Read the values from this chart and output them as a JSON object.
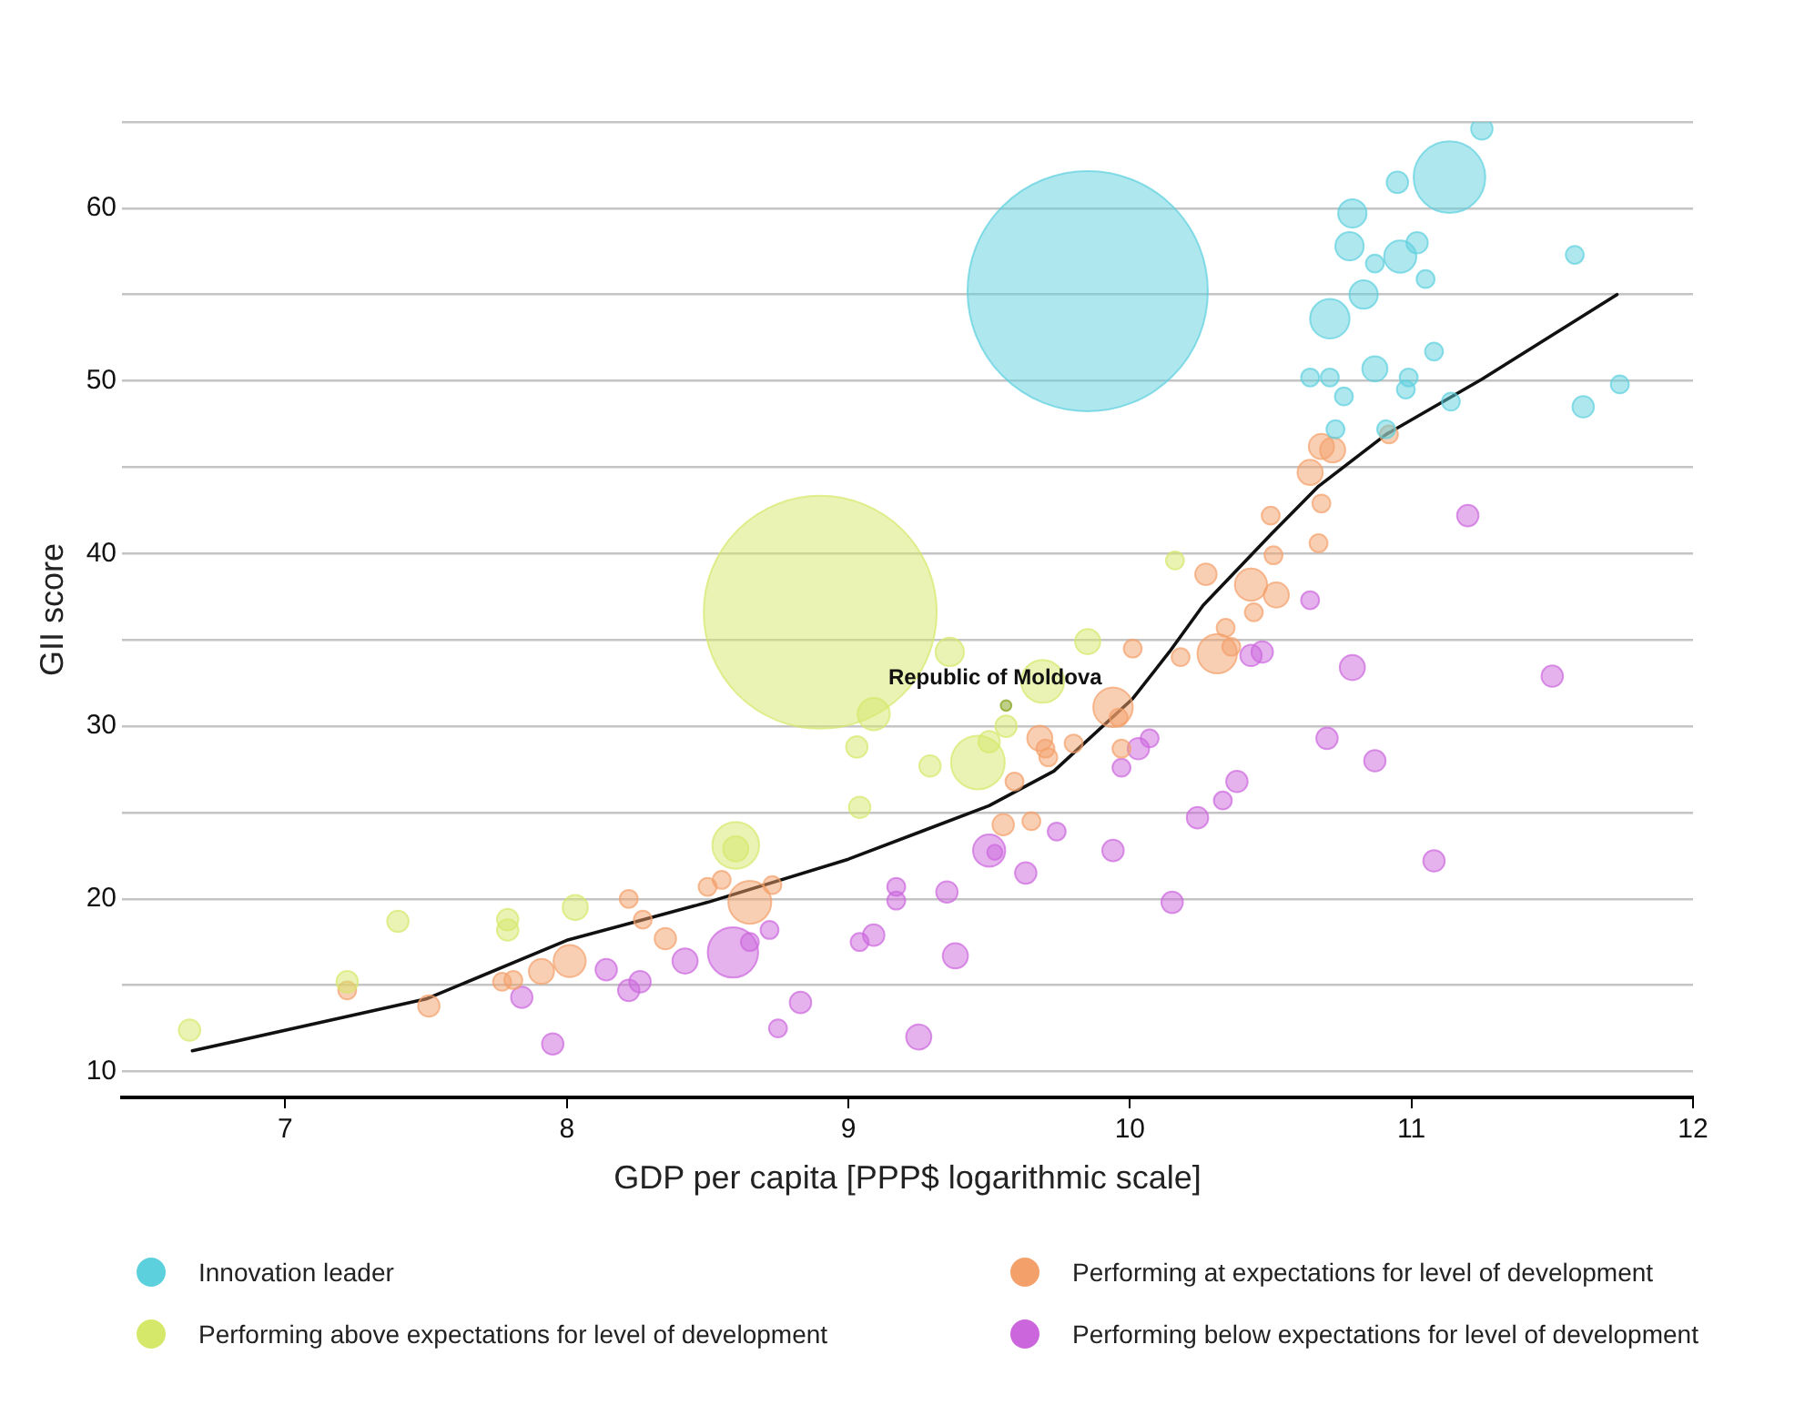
{
  "chart_data": {
    "type": "bubble",
    "xlabel": "GDP per capita [PPP$ logarithmic scale]",
    "ylabel": "GII score",
    "xlim": [
      6.42,
      12
    ],
    "ylim": [
      8.5,
      65
    ],
    "xticks": [
      7,
      8,
      9,
      10,
      11,
      12
    ],
    "yticks": [
      10,
      {
        "value": 15,
        "label": null
      },
      20,
      {
        "value": 25,
        "label": null
      },
      30,
      {
        "value": 35,
        "label": null
      },
      40,
      {
        "value": 45,
        "label": null
      },
      50,
      {
        "value": 55,
        "label": null
      },
      60,
      {
        "value": 65,
        "label": null
      }
    ],
    "grid": "y",
    "legend": "bottom",
    "annotations": [
      {
        "text": "Republic of Moldova",
        "x": 9.56,
        "y": 31.2
      }
    ],
    "series": [
      {
        "name": "Innovation leader",
        "color": "#5dd0de",
        "x": [
          9.85,
          11.25,
          11.135,
          10.95,
          10.79,
          10.78,
          10.87,
          10.96,
          11.02,
          11.05,
          10.83,
          10.71,
          11.58,
          11.08,
          10.87,
          10.64,
          10.71,
          10.99,
          10.98,
          10.76,
          11.14,
          11.61,
          11.74,
          10.73,
          10.91
        ],
        "values": [
          55.2,
          64.6,
          61.8,
          61.5,
          59.7,
          57.8,
          56.8,
          57.2,
          58.0,
          55.9,
          55.0,
          53.6,
          57.3,
          51.7,
          50.7,
          50.2,
          50.2,
          50.2,
          49.5,
          49.1,
          48.8,
          48.5,
          49.8,
          47.2,
          47.2
        ],
        "sizes": [
          1,
          0.008,
          0.089,
          0.008,
          0.014,
          0.014,
          0.0056,
          0.018,
          0.008,
          0.0056,
          0.014,
          0.027,
          0.0056,
          0.0056,
          0.011,
          0.0056,
          0.0056,
          0.0056,
          0.0056,
          0.0056,
          0.0056,
          0.008,
          0.0056,
          0.0056,
          0.0056
        ]
      },
      {
        "name": "Performing above expectations for level of development",
        "color": "#d6e86a",
        "x": [
          8.9,
          10.16,
          9.85,
          9.36,
          9.69,
          9.56,
          9.5,
          9.46,
          9.29,
          9.09,
          9.03,
          9.04,
          8.6,
          8.6,
          6.66,
          7.22,
          7.4,
          7.79,
          7.79,
          8.03
        ],
        "values": [
          36.6,
          39.6,
          34.9,
          34.3,
          32.6,
          30.0,
          29.1,
          27.9,
          27.7,
          30.7,
          28.8,
          25.3,
          23.1,
          22.9,
          12.4,
          15.2,
          18.7,
          18.8,
          18.2,
          19.5
        ],
        "sizes": [
          0.94,
          0.0056,
          0.011,
          0.014,
          0.032,
          0.008,
          0.008,
          0.05,
          0.008,
          0.018,
          0.008,
          0.008,
          0.038,
          0.011,
          0.008,
          0.008,
          0.008,
          0.008,
          0.008,
          0.011
        ]
      },
      {
        "name": "Performing at expectations for level of development",
        "color": "#f4a06a",
        "x": [
          10.68,
          10.72,
          10.64,
          10.68,
          10.5,
          10.92,
          10.67,
          10.51,
          10.27,
          10.43,
          10.52,
          10.44,
          10.34,
          10.31,
          10.36,
          10.18,
          10.01,
          9.94,
          9.96,
          9.68,
          9.7,
          9.71,
          9.8,
          9.97,
          9.59,
          9.55,
          9.65,
          8.5,
          8.55,
          8.65,
          8.73,
          7.22,
          7.51,
          7.77,
          7.81,
          7.91,
          8.01,
          8.22,
          8.27,
          8.35
        ],
        "values": [
          46.2,
          46.0,
          44.7,
          42.9,
          42.2,
          46.9,
          40.6,
          39.9,
          38.8,
          38.2,
          37.6,
          36.6,
          35.7,
          34.2,
          34.6,
          34.0,
          34.5,
          31.1,
          30.5,
          29.3,
          28.7,
          28.2,
          29.0,
          28.7,
          26.8,
          24.3,
          24.5,
          20.7,
          21.1,
          19.8,
          20.8,
          14.7,
          13.8,
          15.2,
          15.3,
          15.8,
          16.4,
          20.0,
          18.8,
          17.7
        ],
        "sizes": [
          0.011,
          0.011,
          0.011,
          0.0056,
          0.0056,
          0.0056,
          0.0056,
          0.0056,
          0.008,
          0.018,
          0.011,
          0.0056,
          0.0056,
          0.027,
          0.0056,
          0.0056,
          0.0056,
          0.027,
          0.0056,
          0.011,
          0.0056,
          0.0056,
          0.0056,
          0.0056,
          0.0056,
          0.008,
          0.0056,
          0.0056,
          0.0056,
          0.032,
          0.0056,
          0.0056,
          0.008,
          0.0056,
          0.0056,
          0.011,
          0.018,
          0.0056,
          0.0056,
          0.008
        ]
      },
      {
        "name": "Performing below expectations for level of development",
        "color": "#cc66dd",
        "x": [
          11.2,
          10.64,
          10.79,
          11.5,
          10.43,
          10.47,
          10.7,
          10.87,
          10.38,
          10.33,
          10.24,
          11.08,
          10.15,
          10.07,
          10.03,
          9.97,
          9.94,
          9.74,
          9.63,
          9.5,
          9.52,
          9.35,
          9.17,
          9.17,
          9.09,
          9.04,
          9.38,
          8.83,
          8.75,
          9.25,
          8.59,
          8.65,
          8.72,
          8.42,
          7.84,
          7.95,
          8.14,
          8.22,
          8.26
        ],
        "values": [
          42.2,
          37.3,
          33.4,
          32.9,
          34.1,
          34.3,
          29.3,
          28.0,
          26.8,
          25.7,
          24.7,
          22.2,
          19.8,
          29.3,
          28.7,
          27.6,
          22.8,
          23.9,
          21.5,
          22.8,
          22.7,
          20.4,
          20.7,
          19.9,
          17.9,
          17.5,
          16.7,
          14.0,
          12.5,
          12.0,
          16.9,
          17.5,
          18.2,
          16.4,
          14.3,
          11.6,
          15.9,
          14.7,
          15.2
        ],
        "sizes": [
          0.008,
          0.0056,
          0.011,
          0.008,
          0.008,
          0.008,
          0.008,
          0.008,
          0.008,
          0.0056,
          0.008,
          0.008,
          0.008,
          0.0056,
          0.008,
          0.0056,
          0.008,
          0.0056,
          0.008,
          0.018,
          0.004,
          0.008,
          0.0056,
          0.0056,
          0.008,
          0.0056,
          0.011,
          0.008,
          0.0056,
          0.011,
          0.044,
          0.0056,
          0.0056,
          0.011,
          0.008,
          0.008,
          0.008,
          0.008,
          0.008
        ]
      },
      {
        "color": "#7fa010",
        "x": [
          9.56
        ],
        "values": [
          31.2
        ],
        "sizes": [
          0.002
        ]
      },
      {
        "type": "line",
        "color": "#111111",
        "marker": "none",
        "line_style": "solid",
        "x": [
          6.67,
          7.5,
          8,
          8.5,
          9,
          9.5,
          9.73,
          10.01,
          10.14,
          10.26,
          10.5,
          10.67,
          10.91,
          11.25,
          11.73
        ],
        "values": [
          11.2,
          14.2,
          17.6,
          19.8,
          22.3,
          25.4,
          27.4,
          31.6,
          34.3,
          37.0,
          41.1,
          43.9,
          46.9,
          50.1,
          55.0
        ]
      }
    ]
  }
}
